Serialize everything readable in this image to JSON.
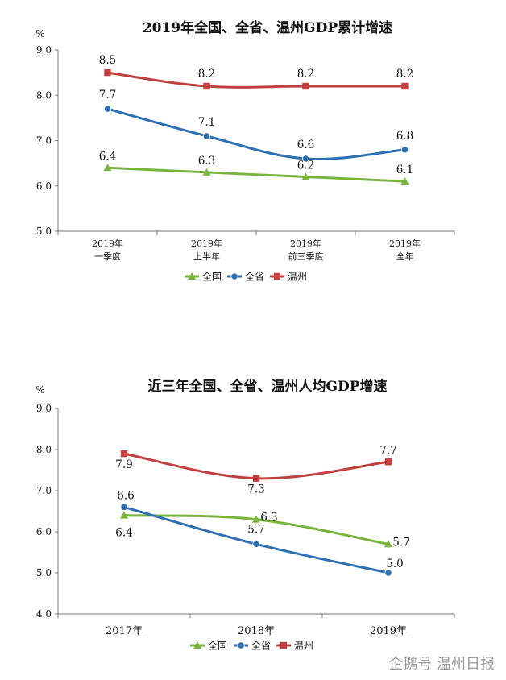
{
  "watermark": "企鹅号 温州日报",
  "chart_data": [
    {
      "type": "line",
      "title": "2019年全国、全省、温州GDP累计增速",
      "ylabel": "%",
      "ylim": [
        5.0,
        9.0
      ],
      "yticks": [
        "5.0",
        "6.0",
        "7.0",
        "8.0",
        "9.0"
      ],
      "categories": [
        [
          "2019年",
          "一季度"
        ],
        [
          "2019年",
          "上半年"
        ],
        [
          "2019年",
          "前三季度"
        ],
        [
          "2019年",
          "全年"
        ]
      ],
      "grid": false,
      "legend_position": "bottom",
      "series": [
        {
          "name": "全国",
          "color": "#78b43c",
          "marker": "triangle",
          "values": [
            6.4,
            6.3,
            6.2,
            6.1
          ]
        },
        {
          "name": "全省",
          "color": "#2e6fb3",
          "marker": "circle",
          "values": [
            7.7,
            7.1,
            6.6,
            6.8
          ]
        },
        {
          "name": "温州",
          "color": "#c0403f",
          "marker": "square",
          "values": [
            8.5,
            8.2,
            8.2,
            8.2
          ]
        }
      ]
    },
    {
      "type": "line",
      "title": "近三年全国、全省、温州人均GDP增速",
      "ylabel": "%",
      "ylim": [
        4.0,
        9.0
      ],
      "yticks": [
        "4.0",
        "5.0",
        "6.0",
        "7.0",
        "8.0",
        "9.0"
      ],
      "categories": [
        [
          "2017年"
        ],
        [
          "2018年"
        ],
        [
          "2019年"
        ]
      ],
      "grid": false,
      "legend_position": "bottom",
      "series": [
        {
          "name": "全国",
          "color": "#78b43c",
          "marker": "triangle",
          "values": [
            6.4,
            6.3,
            5.7
          ]
        },
        {
          "name": "全省",
          "color": "#2e6fb3",
          "marker": "circle",
          "values": [
            6.6,
            5.7,
            5.0
          ]
        },
        {
          "name": "温州",
          "color": "#c0403f",
          "marker": "square",
          "values": [
            7.9,
            7.3,
            7.7
          ]
        }
      ]
    }
  ]
}
